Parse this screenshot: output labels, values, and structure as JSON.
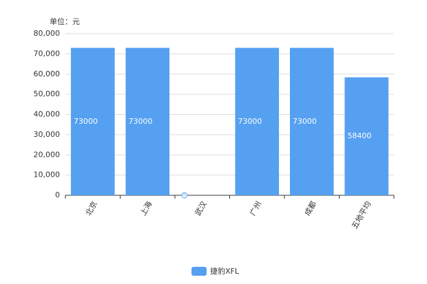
{
  "chart_data": {
    "type": "bar",
    "unit_label": "单位：元",
    "categories": [
      "北京",
      "上海",
      "武汉",
      "广州",
      "成都",
      "五地平均"
    ],
    "series": [
      {
        "name": "捷豹XFL",
        "color": "#55a0f0",
        "values": [
          73000,
          73000,
          0,
          73000,
          73000,
          58400
        ]
      }
    ],
    "ylim": [
      0,
      80000
    ],
    "yticks": [
      0,
      {
        "value": 10000,
        "label": "10,000"
      },
      {
        "value": 20000,
        "label": "20,000"
      },
      {
        "value": 30000,
        "label": "30,000"
      },
      {
        "value": 40000,
        "label": "40,000"
      },
      {
        "value": 50000,
        "label": "50,000"
      },
      {
        "value": 60000,
        "label": "60,000"
      },
      {
        "value": 70000,
        "label": "70,000"
      },
      {
        "value": 80000,
        "label": "80,000"
      }
    ],
    "grid": true,
    "legend": "bottom"
  }
}
